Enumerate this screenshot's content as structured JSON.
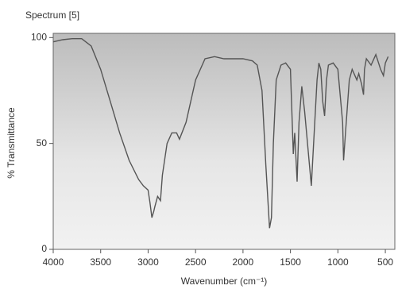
{
  "chart_data": {
    "type": "line",
    "title": "Spectrum [5]",
    "x_label": "Wavenumber (cm⁻¹)",
    "y_label": "% Transmittance",
    "x": [
      4000,
      3900,
      3800,
      3700,
      3600,
      3500,
      3400,
      3300,
      3200,
      3100,
      3050,
      3000,
      2980,
      2960,
      2940,
      2930,
      2900,
      2870,
      2850,
      2800,
      2750,
      2700,
      2670,
      2600,
      2500,
      2400,
      2300,
      2200,
      2100,
      2000,
      1900,
      1850,
      1800,
      1760,
      1720,
      1700,
      1680,
      1650,
      1600,
      1550,
      1500,
      1470,
      1455,
      1430,
      1410,
      1380,
      1350,
      1300,
      1280,
      1250,
      1220,
      1200,
      1180,
      1160,
      1140,
      1120,
      1100,
      1050,
      1000,
      950,
      940,
      920,
      880,
      850,
      800,
      780,
      750,
      730,
      720,
      700,
      650,
      600,
      550,
      520,
      500,
      470
    ],
    "series": [
      {
        "name": "Spectrum",
        "color": "#555555",
        "values": [
          98,
          99,
          99.5,
          99.5,
          96,
          85,
          70,
          55,
          42,
          33,
          30,
          28,
          22,
          15,
          18,
          20,
          25,
          23,
          35,
          50,
          55,
          55,
          52,
          60,
          80,
          90,
          91,
          90,
          90,
          90,
          89,
          87,
          75,
          40,
          10,
          15,
          50,
          80,
          87,
          88,
          85,
          45,
          55,
          32,
          60,
          77,
          65,
          40,
          30,
          55,
          80,
          88,
          85,
          70,
          63,
          80,
          87,
          88,
          85,
          60,
          42,
          55,
          80,
          85,
          80,
          83,
          78,
          73,
          85,
          90,
          87,
          92,
          85,
          82,
          88,
          91
        ]
      }
    ],
    "xlim": [
      4000,
      400
    ],
    "ylim": [
      0,
      102
    ],
    "xticks": [
      4000,
      3500,
      3000,
      2500,
      2000,
      1500,
      1000,
      500
    ],
    "yticks": [
      0,
      50,
      100
    ]
  }
}
